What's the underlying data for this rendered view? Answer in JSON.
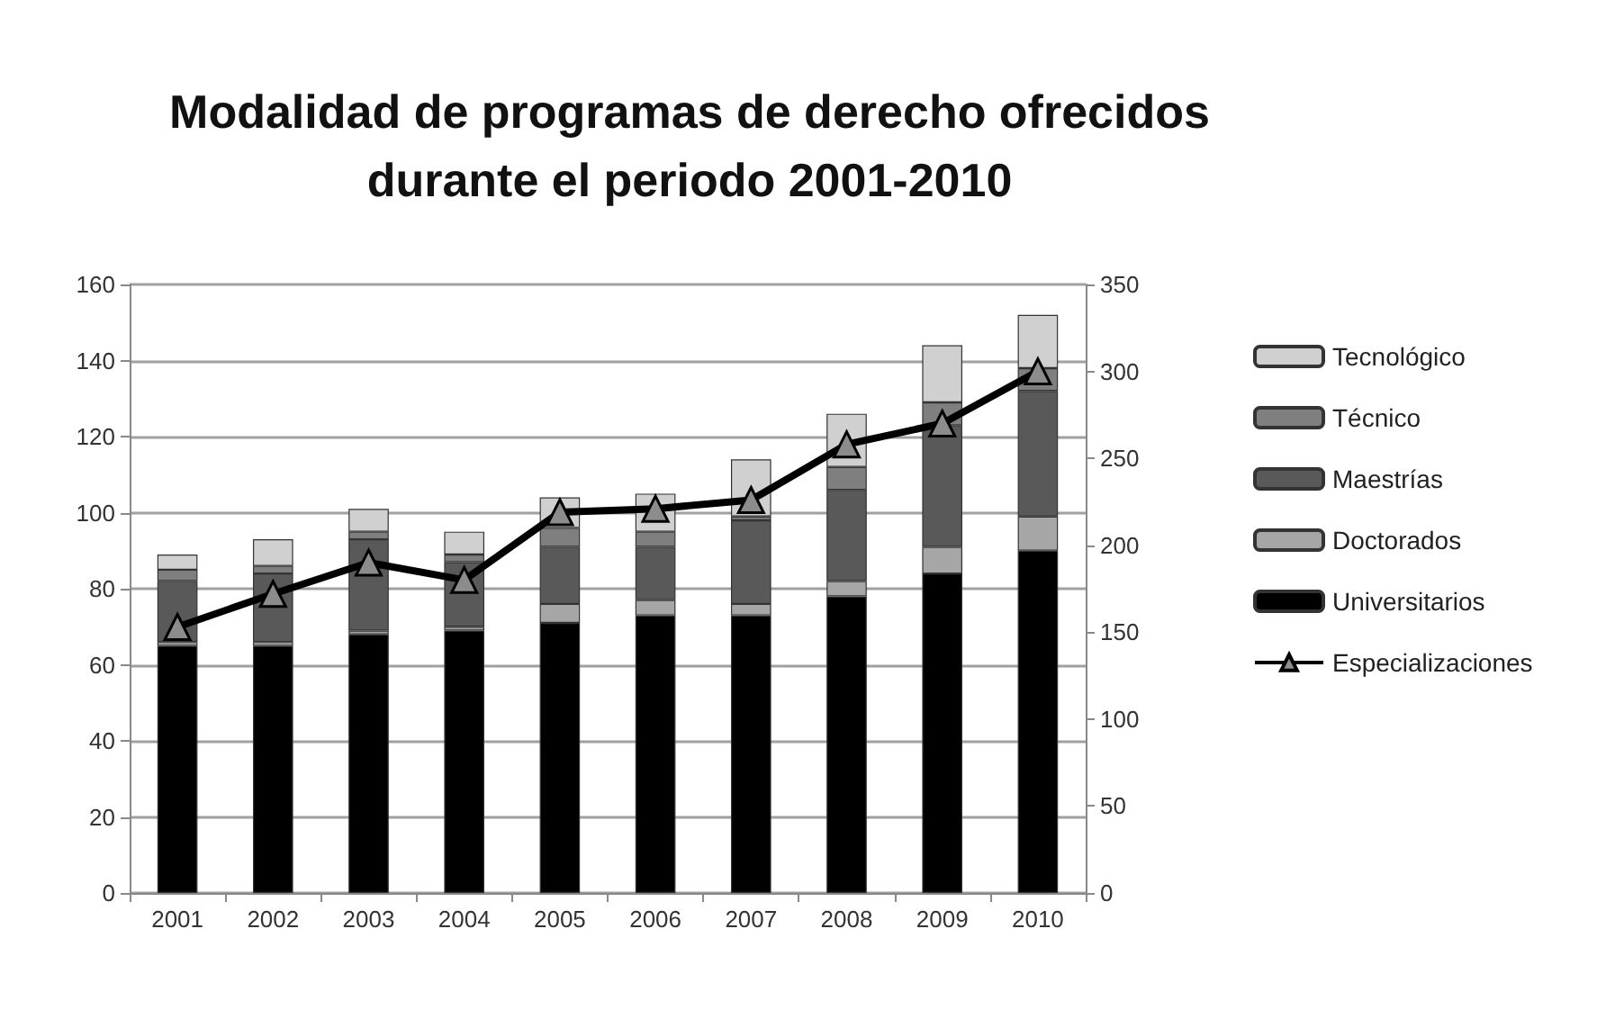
{
  "chart_data": {
    "type": "bar",
    "title": "Modalidad de programas de derecho ofrecidos\ndurante el periodo 2001-2010",
    "stacked": true,
    "categories": [
      "2001",
      "2002",
      "2003",
      "2004",
      "2005",
      "2006",
      "2007",
      "2008",
      "2009",
      "2010"
    ],
    "series": [
      {
        "name": "Universitarios",
        "color": "#000000",
        "values": [
          65,
          65,
          68,
          69,
          71,
          73,
          73,
          78,
          84,
          90
        ]
      },
      {
        "name": "Doctorados",
        "color": "#a6a6a6",
        "values": [
          1,
          1,
          1,
          1,
          5,
          4,
          3,
          4,
          7,
          9
        ]
      },
      {
        "name": "Maestrías",
        "color": "#595959",
        "values": [
          16,
          18,
          24,
          17,
          15,
          14,
          22,
          24,
          32,
          33
        ]
      },
      {
        "name": "Técnico",
        "color": "#7f7f7f",
        "values": [
          3,
          2,
          2,
          2,
          5,
          4,
          1,
          6,
          6,
          6
        ]
      },
      {
        "name": "Tecnológico",
        "color": "#d0d0d0",
        "values": [
          4,
          7,
          6,
          6,
          8,
          10,
          15,
          14,
          15,
          14
        ]
      },
      {
        "name": "Especializaciones",
        "type": "line",
        "axis": "y2",
        "color": "#000000",
        "marker": "triangle",
        "values": [
          153,
          172,
          190,
          180,
          219,
          221,
          226,
          258,
          270,
          300
        ]
      }
    ],
    "ylim": [
      0,
      160
    ],
    "yticks": [
      0,
      20,
      40,
      60,
      80,
      100,
      120,
      140,
      160
    ],
    "y2lim": [
      0,
      350
    ],
    "y2ticks": [
      0,
      50,
      100,
      150,
      200,
      250,
      300,
      350
    ],
    "grid": "y",
    "legend": "right"
  }
}
